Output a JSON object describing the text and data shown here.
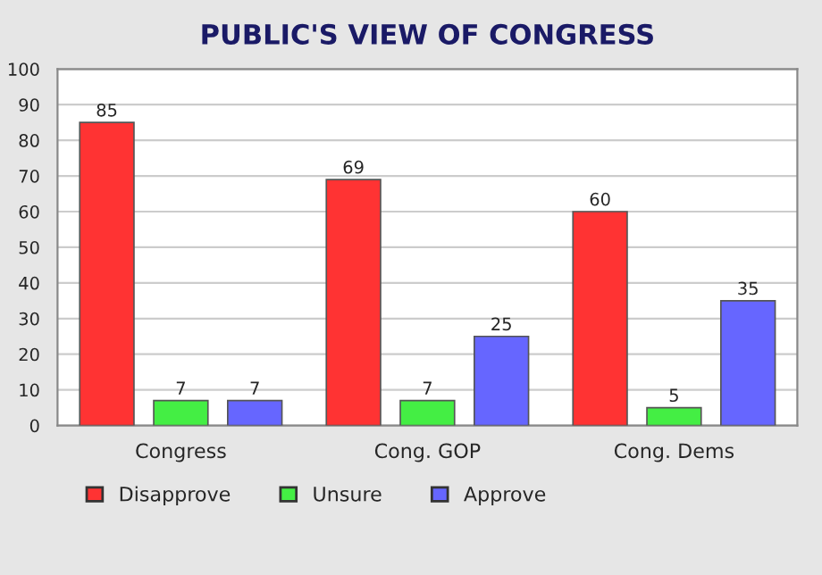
{
  "chart_data": {
    "type": "bar",
    "title": "PUBLIC'S VIEW OF CONGRESS",
    "categories": [
      "Congress",
      "Cong. GOP",
      "Cong. Dems"
    ],
    "series": [
      {
        "name": "Disapprove",
        "color": "#ff3333",
        "values": [
          85,
          69,
          60
        ]
      },
      {
        "name": "Unsure",
        "color": "#44ee44",
        "values": [
          7,
          7,
          5
        ]
      },
      {
        "name": "Approve",
        "color": "#6666ff",
        "values": [
          7,
          25,
          35
        ]
      }
    ],
    "ylim": [
      0,
      100
    ],
    "yticks": [
      0,
      10,
      20,
      30,
      40,
      50,
      60,
      70,
      80,
      90,
      100
    ],
    "grid": "y",
    "legend": "bottom",
    "data_labels": true
  }
}
